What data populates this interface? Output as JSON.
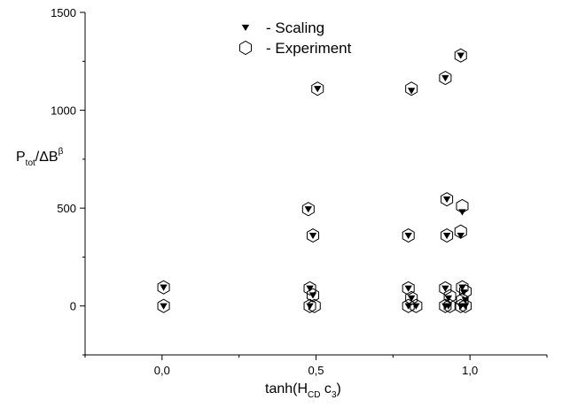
{
  "chart_data": {
    "type": "scatter",
    "xlabel": {
      "base": "tanh(H",
      "sub": "CD",
      "tail": " c",
      "sub2": "3",
      "close": ")"
    },
    "ylabel": {
      "base": "P",
      "sub": "tot",
      "mid": "/ΔB",
      "sup": "β"
    },
    "xlim": [
      -0.25,
      1.25
    ],
    "ylim": [
      -250,
      1500
    ],
    "x_ticks": [
      0.0,
      0.5,
      1.0
    ],
    "x_tick_labels": [
      "0,0",
      "0,5",
      "1,0"
    ],
    "y_ticks": [
      0,
      500,
      1000,
      1500
    ],
    "y_tick_labels": [
      "0",
      "500",
      "1000",
      "1500"
    ],
    "grid": false,
    "legend_placement": "top-center",
    "series": [
      {
        "name": "- Scaling",
        "marker": "filled-down-triangle",
        "points": [
          [
            0.005,
            95
          ],
          [
            0.005,
            0
          ],
          [
            0.475,
            495
          ],
          [
            0.48,
            90
          ],
          [
            0.49,
            55
          ],
          [
            0.48,
            0
          ],
          [
            0.49,
            360
          ],
          [
            0.505,
            1110
          ],
          [
            0.8,
            360
          ],
          [
            0.8,
            90
          ],
          [
            0.81,
            40
          ],
          [
            0.8,
            0
          ],
          [
            0.81,
            1100
          ],
          [
            0.825,
            0
          ],
          [
            0.92,
            1165
          ],
          [
            0.925,
            545
          ],
          [
            0.925,
            360
          ],
          [
            0.92,
            90
          ],
          [
            0.93,
            40
          ],
          [
            0.92,
            0
          ],
          [
            0.93,
            0
          ],
          [
            0.97,
            1280
          ],
          [
            0.975,
            480
          ],
          [
            0.97,
            360
          ],
          [
            0.975,
            95
          ],
          [
            0.98,
            70
          ],
          [
            0.985,
            30
          ],
          [
            0.97,
            0
          ],
          [
            0.985,
            0
          ]
        ]
      },
      {
        "name": "- Experiment",
        "marker": "open-hexagon",
        "points": [
          [
            0.005,
            95
          ],
          [
            0.005,
            0
          ],
          [
            0.475,
            495
          ],
          [
            0.48,
            90
          ],
          [
            0.49,
            55
          ],
          [
            0.48,
            0
          ],
          [
            0.495,
            0
          ],
          [
            0.49,
            360
          ],
          [
            0.505,
            1110
          ],
          [
            0.8,
            360
          ],
          [
            0.8,
            90
          ],
          [
            0.81,
            40
          ],
          [
            0.8,
            0
          ],
          [
            0.81,
            1110
          ],
          [
            0.825,
            0
          ],
          [
            0.92,
            1165
          ],
          [
            0.925,
            545
          ],
          [
            0.925,
            360
          ],
          [
            0.92,
            90
          ],
          [
            0.935,
            50
          ],
          [
            0.92,
            0
          ],
          [
            0.935,
            0
          ],
          [
            0.97,
            1280
          ],
          [
            0.975,
            510
          ],
          [
            0.97,
            380
          ],
          [
            0.975,
            95
          ],
          [
            0.985,
            75
          ],
          [
            0.975,
            30
          ],
          [
            0.97,
            0
          ],
          [
            0.985,
            0
          ]
        ]
      }
    ]
  }
}
